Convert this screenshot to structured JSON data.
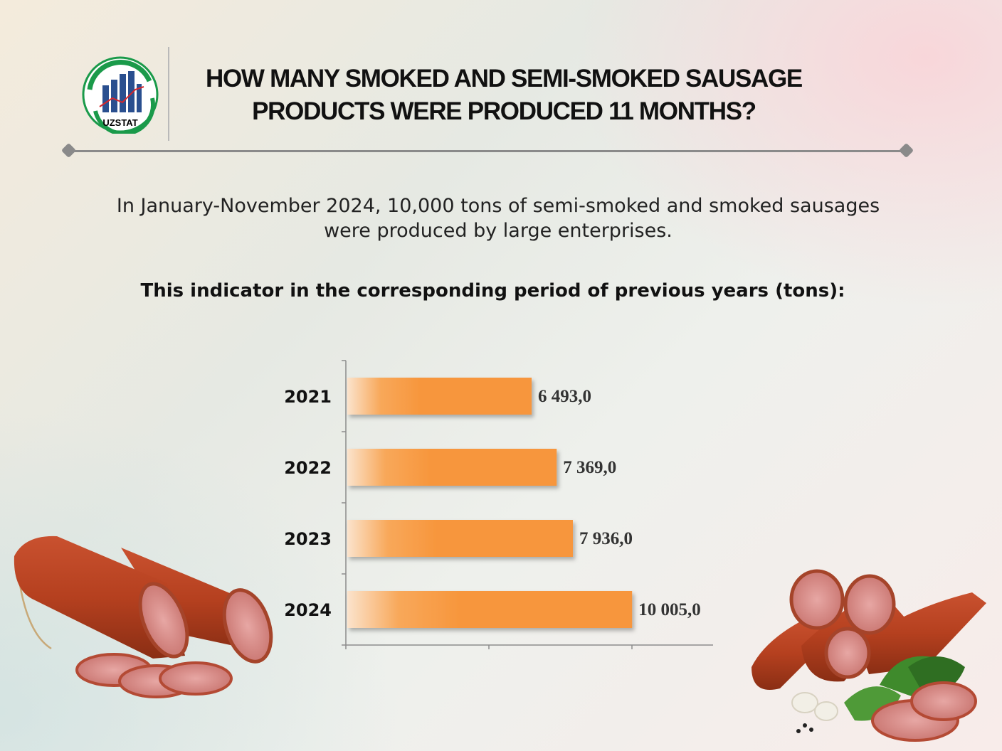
{
  "header": {
    "logo_text": "UZSTAT",
    "title_line1": "HOW MANY SMOKED AND SEMI-SMOKED SAUSAGE",
    "title_line2": "PRODUCTS WERE PRODUCED 11 MONTHS?"
  },
  "intro": {
    "line1": "In January-November 2024, 10,000 tons of semi-smoked and smoked sausages",
    "line2": "were produced by large enterprises."
  },
  "subtitle": "This indicator in the corresponding period of previous years (tons):",
  "colors": {
    "bar": "#f7963c",
    "accent_rule": "#8a8a8a"
  },
  "chart_data": {
    "type": "bar",
    "orientation": "horizontal",
    "categories": [
      "2021",
      "2022",
      "2023",
      "2024"
    ],
    "values": [
      6493.0,
      7369.0,
      7936.0,
      10005.0
    ],
    "value_labels": [
      "6 493,0",
      "7 369,0",
      "7 936,0",
      "10 005,0"
    ],
    "xlim": [
      0,
      12500
    ],
    "xlabel": "",
    "ylabel": "",
    "grid": false
  }
}
